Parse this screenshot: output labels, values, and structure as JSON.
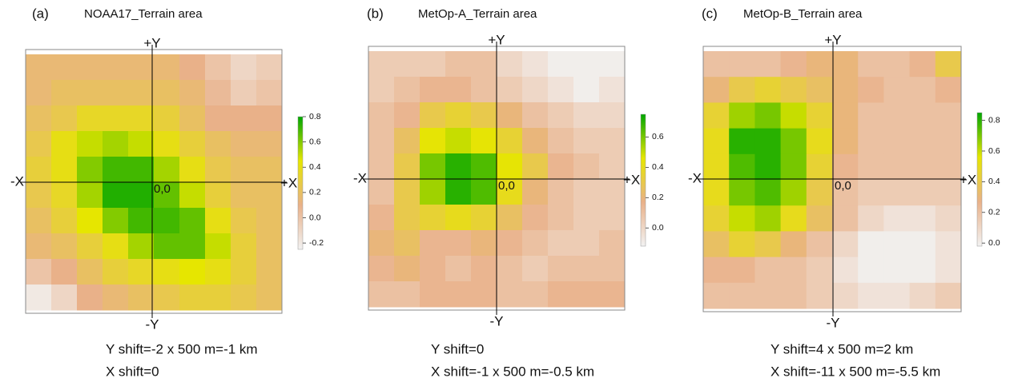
{
  "chart_data": [
    {
      "type": "heatmap",
      "label": "(a)",
      "title": "NOAA17_Terrain area",
      "axis_labels": {
        "top": "+Y",
        "bottom": "-Y",
        "left": "-X",
        "right": "+X",
        "origin": "0,0"
      },
      "zlim": [
        -0.25,
        0.8
      ],
      "zticks": [
        -0.2,
        {
          "value": 0,
          "label": "0.0"
        },
        0.2,
        0.4,
        0.6,
        0.8
      ],
      "colors": [
        "#F2F2F2",
        "#E9B189",
        "#E6E600",
        "#00A600"
      ],
      "z": [
        [
          0.15,
          0.15,
          0.15,
          0.15,
          0.15,
          0.15,
          0.1,
          0.0,
          -0.1,
          -0.05
        ],
        [
          0.15,
          0.2,
          0.2,
          0.2,
          0.2,
          0.2,
          0.15,
          0.05,
          -0.05,
          0.0
        ],
        [
          0.2,
          0.25,
          0.35,
          0.35,
          0.35,
          0.3,
          0.2,
          0.1,
          0.1,
          0.1
        ],
        [
          0.25,
          0.4,
          0.5,
          0.55,
          0.5,
          0.4,
          0.3,
          0.2,
          0.15,
          0.15
        ],
        [
          0.3,
          0.4,
          0.6,
          0.7,
          0.7,
          0.55,
          0.4,
          0.25,
          0.2,
          0.2
        ],
        [
          0.25,
          0.35,
          0.55,
          0.75,
          0.75,
          0.65,
          0.5,
          0.3,
          0.2,
          0.2
        ],
        [
          0.2,
          0.3,
          0.45,
          0.6,
          0.7,
          0.7,
          0.65,
          0.4,
          0.25,
          0.2
        ],
        [
          0.15,
          0.2,
          0.3,
          0.4,
          0.55,
          0.65,
          0.65,
          0.5,
          0.3,
          0.2
        ],
        [
          0.0,
          0.1,
          0.2,
          0.3,
          0.35,
          0.4,
          0.45,
          0.4,
          0.3,
          0.2
        ],
        [
          -0.2,
          -0.1,
          0.1,
          0.15,
          0.2,
          0.25,
          0.3,
          0.3,
          0.25,
          0.2
        ]
      ],
      "captions": [
        "Y shift=-2 x 500 m=-1 km",
        "X shift=0"
      ]
    },
    {
      "type": "heatmap",
      "label": "(b)",
      "title": "MetOp-A_Terrain area",
      "axis_labels": {
        "top": "+Y",
        "bottom": "-Y",
        "left": "-X",
        "right": "+X",
        "origin": "0,0"
      },
      "zlim": [
        -0.12,
        0.75
      ],
      "zticks": [
        {
          "value": 0,
          "label": "0.0"
        },
        0.2,
        0.4,
        0.6
      ],
      "colors": [
        "#F2F2F2",
        "#E9B189",
        "#E6E600",
        "#00A600"
      ],
      "z": [
        [
          0.05,
          0.05,
          0.05,
          0.1,
          0.1,
          0.0,
          -0.05,
          -0.1,
          -0.1,
          -0.1
        ],
        [
          0.05,
          0.1,
          0.15,
          0.15,
          0.1,
          0.05,
          0.0,
          -0.05,
          -0.1,
          -0.05
        ],
        [
          0.1,
          0.15,
          0.3,
          0.35,
          0.3,
          0.2,
          0.1,
          0.05,
          0.0,
          0.0
        ],
        [
          0.1,
          0.25,
          0.45,
          0.5,
          0.45,
          0.35,
          0.2,
          0.1,
          0.05,
          0.05
        ],
        [
          0.1,
          0.3,
          0.6,
          0.7,
          0.65,
          0.45,
          0.3,
          0.15,
          0.1,
          0.05
        ],
        [
          0.1,
          0.3,
          0.55,
          0.7,
          0.65,
          0.4,
          0.2,
          0.1,
          0.05,
          0.05
        ],
        [
          0.15,
          0.3,
          0.35,
          0.4,
          0.35,
          0.25,
          0.15,
          0.1,
          0.05,
          0.05
        ],
        [
          0.2,
          0.25,
          0.15,
          0.15,
          0.2,
          0.15,
          0.1,
          0.05,
          0.05,
          0.1
        ],
        [
          0.15,
          0.2,
          0.15,
          0.1,
          0.15,
          0.1,
          0.05,
          0.1,
          0.1,
          0.1
        ],
        [
          0.1,
          0.1,
          0.15,
          0.15,
          0.15,
          0.1,
          0.1,
          0.15,
          0.15,
          0.15
        ]
      ],
      "captions": [
        "Y shift=0",
        "X shift=-1 x 500 m=-0.5 km"
      ]
    },
    {
      "type": "heatmap",
      "label": "(c)",
      "title": "MetOp-B_Terrain area",
      "axis_labels": {
        "top": "+Y",
        "bottom": "-Y",
        "left": "-X",
        "right": "+X",
        "origin": "0,0"
      },
      "zlim": [
        -0.02,
        0.85
      ],
      "zticks": [
        {
          "value": 0,
          "label": "0.0"
        },
        0.2,
        0.4,
        0.6,
        0.8
      ],
      "colors": [
        "#F2F2F2",
        "#E9B189",
        "#E6E600",
        "#00A600"
      ],
      "z": [
        [
          0.2,
          0.2,
          0.2,
          0.25,
          0.3,
          0.3,
          0.2,
          0.2,
          0.25,
          0.4
        ],
        [
          0.3,
          0.4,
          0.45,
          0.4,
          0.35,
          0.3,
          0.25,
          0.2,
          0.2,
          0.25
        ],
        [
          0.45,
          0.65,
          0.7,
          0.6,
          0.45,
          0.3,
          0.2,
          0.2,
          0.2,
          0.2
        ],
        [
          0.5,
          0.8,
          0.8,
          0.7,
          0.5,
          0.3,
          0.2,
          0.2,
          0.2,
          0.2
        ],
        [
          0.5,
          0.75,
          0.8,
          0.7,
          0.45,
          0.25,
          0.2,
          0.2,
          0.2,
          0.2
        ],
        [
          0.5,
          0.7,
          0.75,
          0.65,
          0.4,
          0.2,
          0.15,
          0.15,
          0.15,
          0.15
        ],
        [
          0.45,
          0.6,
          0.65,
          0.5,
          0.35,
          0.2,
          0.1,
          0.05,
          0.05,
          0.1
        ],
        [
          0.35,
          0.45,
          0.4,
          0.3,
          0.2,
          0.1,
          0.0,
          0.0,
          0.0,
          0.05
        ],
        [
          0.25,
          0.25,
          0.2,
          0.2,
          0.15,
          0.05,
          0.0,
          0.0,
          0.0,
          0.05
        ],
        [
          0.2,
          0.2,
          0.2,
          0.2,
          0.15,
          0.1,
          0.05,
          0.05,
          0.1,
          0.15
        ]
      ],
      "captions": [
        "Y shift=4 x 500 m=2 km",
        "X shift=-11 x 500 m=-5.5 km"
      ]
    }
  ]
}
